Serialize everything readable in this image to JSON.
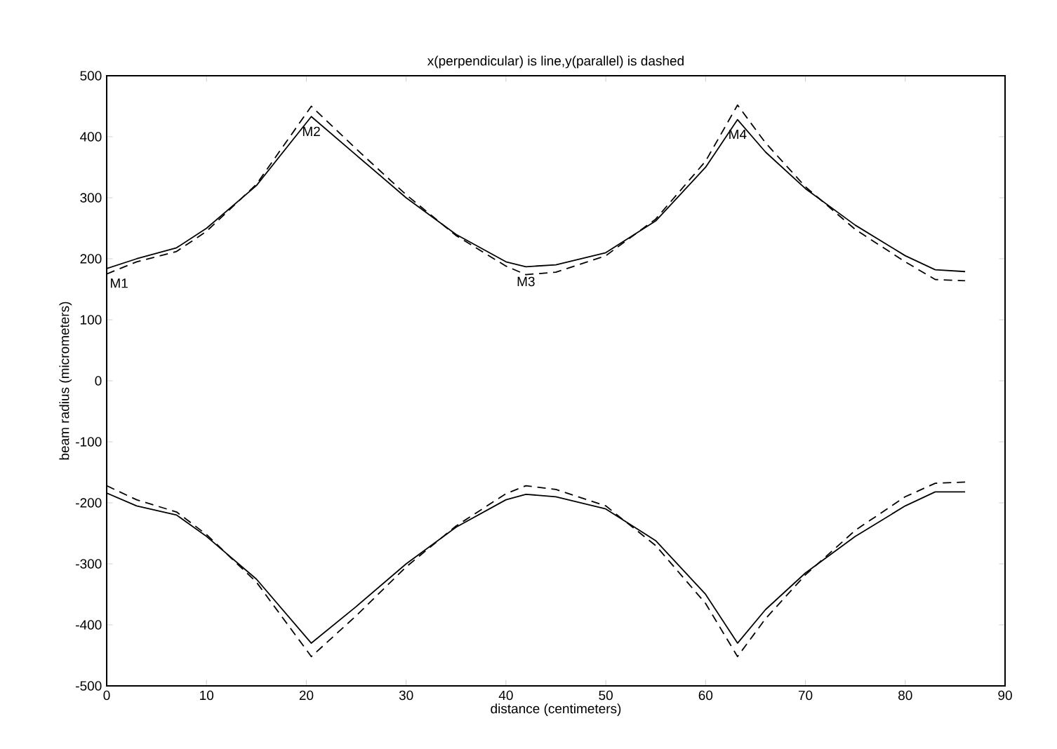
{
  "chart_data": {
    "type": "line",
    "title": "x(perpendicular) is line,y(parallel) is dashed",
    "xlabel": "distance (centimeters)",
    "ylabel": "beam radius (micrometers)",
    "x": [
      0,
      3,
      7,
      10,
      15,
      20.5,
      25,
      30,
      35,
      40,
      42,
      45,
      50,
      55,
      60,
      63.2,
      66,
      70,
      75,
      80,
      83,
      86
    ],
    "series": [
      {
        "color": "#000000",
        "line_style": "solid",
        "values": [
          184,
          200,
          218,
          250,
          320,
          433,
          370,
          300,
          240,
          195,
          187,
          190,
          210,
          262,
          350,
          428,
          375,
          315,
          255,
          205,
          182,
          179
        ]
      },
      {
        "color": "#000000",
        "line_style": "dashed",
        "values": [
          175,
          195,
          212,
          245,
          322,
          450,
          380,
          305,
          238,
          188,
          174,
          178,
          205,
          265,
          360,
          452,
          390,
          318,
          248,
          195,
          166,
          164
        ]
      },
      {
        "color": "#000000",
        "line_style": "solid",
        "values": [
          -184,
          -205,
          -220,
          -255,
          -325,
          -430,
          -370,
          -300,
          -240,
          -195,
          -186,
          -190,
          -210,
          -262,
          -350,
          -430,
          -375,
          -315,
          -255,
          -205,
          -182,
          -182
        ]
      },
      {
        "color": "#000000",
        "line_style": "dashed",
        "values": [
          -172,
          -195,
          -215,
          -252,
          -330,
          -452,
          -385,
          -305,
          -238,
          -185,
          -172,
          -178,
          -205,
          -270,
          -365,
          -452,
          -390,
          -318,
          -245,
          -190,
          -168,
          -166
        ]
      }
    ],
    "annotations": [
      {
        "text": "M1",
        "x": 0,
        "y": 184
      },
      {
        "text": "M2",
        "x": 20.5,
        "y": 433
      },
      {
        "text": "M3",
        "x": 42,
        "y": 187
      },
      {
        "text": "M4",
        "x": 63.2,
        "y": 428
      }
    ],
    "xlim": [
      0,
      90
    ],
    "ylim": [
      -500,
      500
    ],
    "xticks": [
      0,
      10,
      20,
      30,
      40,
      50,
      60,
      70,
      80,
      90
    ],
    "yticks": [
      -500,
      -400,
      -300,
      -200,
      -100,
      0,
      100,
      200,
      300,
      400,
      500
    ],
    "grid": false,
    "marker": "none"
  }
}
